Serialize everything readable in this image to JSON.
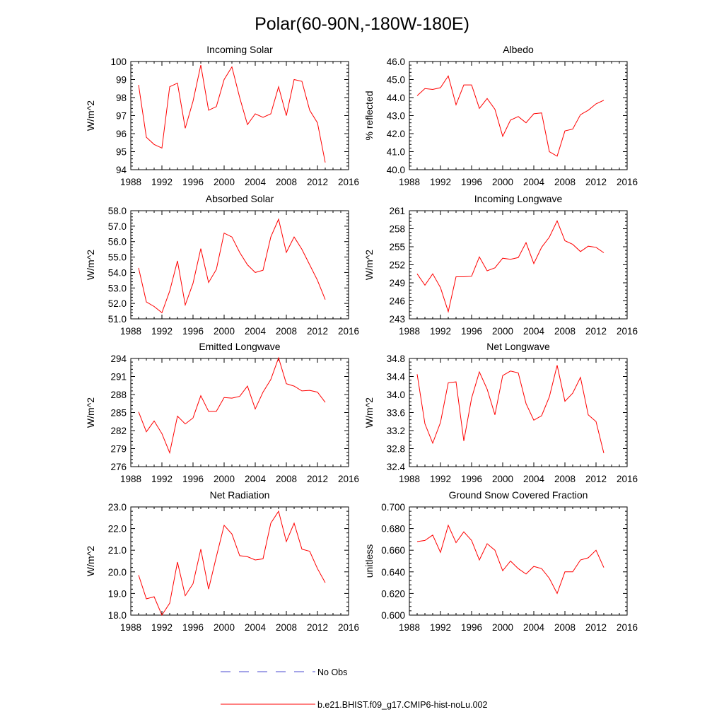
{
  "title": "Polar(60-90N,-180W-180E)",
  "colors": {
    "model": "#ff0000",
    "obs": "#4a4ad0",
    "axis": "#000000"
  },
  "legend": {
    "entries": [
      {
        "label": "No Obs",
        "style": "dashed",
        "color": "#4a4ad0"
      },
      {
        "label": "b.e21.BHIST.f09_g17.CMIP6-hist-noLu.002",
        "style": "solid",
        "color": "#ff0000"
      }
    ]
  },
  "chart_data": [
    {
      "type": "line",
      "title": "Incoming Solar",
      "ylabel": "W/m^2",
      "xlim": [
        1988,
        2016
      ],
      "ylim": [
        94,
        100
      ],
      "xticks": [
        "1988",
        "1992",
        "1996",
        "2000",
        "2004",
        "2008",
        "2012",
        "2016"
      ],
      "yticks": [
        "94",
        "95",
        "96",
        "97",
        "98",
        "99",
        "100"
      ],
      "grid": false,
      "series": [
        {
          "name": "b.e21.BHIST.f09_g17.CMIP6-hist-noLu.002",
          "x": [
            1989,
            1990,
            1991,
            1992,
            1993,
            1994,
            1995,
            1996,
            1997,
            1998,
            1999,
            2000,
            2001,
            2002,
            2003,
            2004,
            2005,
            2006,
            2007,
            2008,
            2009,
            2010,
            2011,
            2012,
            2013
          ],
          "values": [
            98.7,
            95.8,
            95.4,
            95.2,
            98.6,
            98.8,
            96.3,
            97.8,
            99.8,
            97.3,
            97.5,
            99.0,
            99.7,
            98.0,
            96.5,
            97.1,
            96.9,
            97.1,
            98.6,
            97.0,
            99.0,
            98.9,
            97.3,
            96.6,
            94.4
          ]
        }
      ]
    },
    {
      "type": "line",
      "title": "Albedo",
      "ylabel": "% reflected",
      "xlim": [
        1988,
        2016
      ],
      "ylim": [
        40,
        46
      ],
      "xticks": [
        "1988",
        "1992",
        "1996",
        "2000",
        "2004",
        "2008",
        "2012",
        "2016"
      ],
      "yticks": [
        "40.0",
        "41.0",
        "42.0",
        "43.0",
        "44.0",
        "45.0",
        "46.0"
      ],
      "grid": false,
      "series": [
        {
          "name": "b.e21.BHIST.f09_g17.CMIP6-hist-noLu.002",
          "x": [
            1989,
            1990,
            1991,
            1992,
            1993,
            1994,
            1995,
            1996,
            1997,
            1998,
            1999,
            2000,
            2001,
            2002,
            2003,
            2004,
            2005,
            2006,
            2007,
            2008,
            2009,
            2010,
            2011,
            2012,
            2013
          ],
          "values": [
            44.1,
            44.5,
            44.45,
            44.55,
            45.2,
            43.6,
            44.7,
            44.7,
            43.4,
            43.95,
            43.35,
            41.85,
            42.75,
            42.95,
            42.6,
            43.1,
            43.15,
            41.0,
            40.75,
            42.15,
            42.25,
            43.05,
            43.3,
            43.65,
            43.85
          ]
        }
      ]
    },
    {
      "type": "line",
      "title": "Absorbed Solar",
      "ylabel": "W/m^2",
      "xlim": [
        1988,
        2016
      ],
      "ylim": [
        51,
        58
      ],
      "xticks": [
        "1988",
        "1992",
        "1996",
        "2000",
        "2004",
        "2008",
        "2012",
        "2016"
      ],
      "yticks": [
        "51.0",
        "52.0",
        "53.0",
        "54.0",
        "55.0",
        "56.0",
        "57.0",
        "58.0"
      ],
      "grid": false,
      "series": [
        {
          "name": "b.e21.BHIST.f09_g17.CMIP6-hist-noLu.002",
          "x": [
            1989,
            1990,
            1991,
            1992,
            1993,
            1994,
            1995,
            1996,
            1997,
            1998,
            1999,
            2000,
            2001,
            2002,
            2003,
            2004,
            2005,
            2006,
            2007,
            2008,
            2009,
            2010,
            2011,
            2012,
            2013
          ],
          "values": [
            54.3,
            52.1,
            51.8,
            51.4,
            52.8,
            54.75,
            51.9,
            53.3,
            55.55,
            53.35,
            54.2,
            56.55,
            56.3,
            55.3,
            54.5,
            54.0,
            54.15,
            56.3,
            57.45,
            55.3,
            56.3,
            55.5,
            54.5,
            53.5,
            52.25
          ]
        }
      ]
    },
    {
      "type": "line",
      "title": "Incoming Longwave",
      "ylabel": "W/m^2",
      "xlim": [
        1988,
        2016
      ],
      "ylim": [
        243,
        261
      ],
      "xticks": [
        "1988",
        "1992",
        "1996",
        "2000",
        "2004",
        "2008",
        "2012",
        "2016"
      ],
      "yticks": [
        "243",
        "246",
        "249",
        "252",
        "255",
        "258",
        "261"
      ],
      "grid": false,
      "series": [
        {
          "name": "b.e21.BHIST.f09_g17.CMIP6-hist-noLu.002",
          "x": [
            1989,
            1990,
            1991,
            1992,
            1993,
            1994,
            1995,
            1996,
            1997,
            1998,
            1999,
            2000,
            2001,
            2002,
            2003,
            2004,
            2005,
            2006,
            2007,
            2008,
            2009,
            2010,
            2011,
            2012,
            2013
          ],
          "values": [
            250.5,
            248.6,
            250.5,
            248.2,
            244.2,
            250.0,
            250.0,
            250.1,
            253.3,
            251.0,
            251.5,
            253.1,
            252.9,
            253.2,
            255.7,
            252.2,
            254.9,
            256.6,
            259.3,
            256.0,
            255.4,
            254.2,
            255.1,
            254.9,
            254.0
          ]
        }
      ]
    },
    {
      "type": "line",
      "title": "Emitted Longwave",
      "ylabel": "W/m^2",
      "xlim": [
        1988,
        2016
      ],
      "ylim": [
        276,
        294
      ],
      "xticks": [
        "1988",
        "1992",
        "1996",
        "2000",
        "2004",
        "2008",
        "2012",
        "2016"
      ],
      "yticks": [
        "276",
        "279",
        "282",
        "285",
        "288",
        "291",
        "294"
      ],
      "grid": false,
      "series": [
        {
          "name": "b.e21.BHIST.f09_g17.CMIP6-hist-noLu.002",
          "x": [
            1989,
            1990,
            1991,
            1992,
            1993,
            1994,
            1995,
            1996,
            1997,
            1998,
            1999,
            2000,
            2001,
            2002,
            2003,
            2004,
            2005,
            2006,
            2007,
            2008,
            2009,
            2010,
            2011,
            2012,
            2013
          ],
          "values": [
            285.1,
            281.8,
            283.6,
            281.5,
            278.3,
            284.4,
            283.1,
            284.1,
            287.8,
            285.2,
            285.2,
            287.5,
            287.4,
            287.7,
            289.4,
            285.6,
            288.4,
            290.5,
            294.1,
            289.8,
            289.4,
            288.6,
            288.7,
            288.4,
            286.7
          ]
        }
      ]
    },
    {
      "type": "line",
      "title": "Net Longwave",
      "ylabel": "W/m^2",
      "xlim": [
        1988,
        2016
      ],
      "ylim": [
        32.4,
        34.8
      ],
      "xticks": [
        "1988",
        "1992",
        "1996",
        "2000",
        "2004",
        "2008",
        "2012",
        "2016"
      ],
      "yticks": [
        "32.4",
        "32.8",
        "33.2",
        "33.6",
        "34.0",
        "34.4",
        "34.8"
      ],
      "grid": false,
      "series": [
        {
          "name": "b.e21.BHIST.f09_g17.CMIP6-hist-noLu.002",
          "x": [
            1989,
            1990,
            1991,
            1992,
            1993,
            1994,
            1995,
            1996,
            1997,
            1998,
            1999,
            2000,
            2001,
            2002,
            2003,
            2004,
            2005,
            2006,
            2007,
            2008,
            2009,
            2010,
            2011,
            2012,
            2013
          ],
          "values": [
            34.45,
            33.35,
            32.92,
            33.38,
            34.26,
            34.28,
            32.97,
            33.92,
            34.5,
            34.12,
            33.55,
            34.42,
            34.52,
            34.48,
            33.8,
            33.43,
            33.53,
            33.95,
            34.65,
            33.85,
            34.03,
            34.38,
            33.55,
            33.4,
            32.7
          ]
        }
      ]
    },
    {
      "type": "line",
      "title": "Net Radiation",
      "ylabel": "W/m^2",
      "xlim": [
        1988,
        2016
      ],
      "ylim": [
        18,
        23
      ],
      "xticks": [
        "1988",
        "1992",
        "1996",
        "2000",
        "2004",
        "2008",
        "2012",
        "2016"
      ],
      "yticks": [
        "18.0",
        "19.0",
        "20.0",
        "21.0",
        "22.0",
        "23.0"
      ],
      "grid": false,
      "series": [
        {
          "name": "b.e21.BHIST.f09_g17.CMIP6-hist-noLu.002",
          "x": [
            1989,
            1990,
            1991,
            1992,
            1993,
            1994,
            1995,
            1996,
            1997,
            1998,
            1999,
            2000,
            2001,
            2002,
            2003,
            2004,
            2005,
            2006,
            2007,
            2008,
            2009,
            2010,
            2011,
            2012,
            2013
          ],
          "values": [
            19.85,
            18.75,
            18.85,
            18.0,
            18.55,
            20.45,
            18.9,
            19.45,
            21.05,
            19.2,
            20.7,
            22.15,
            21.75,
            20.75,
            20.7,
            20.55,
            20.6,
            22.25,
            22.8,
            21.4,
            22.25,
            21.05,
            20.95,
            20.15,
            19.5
          ]
        }
      ]
    },
    {
      "type": "line",
      "title": "Ground Snow Covered Fraction",
      "ylabel": "unitless",
      "xlim": [
        1988,
        2016
      ],
      "ylim": [
        0.6,
        0.7
      ],
      "xticks": [
        "1988",
        "1992",
        "1996",
        "2000",
        "2004",
        "2008",
        "2012",
        "2016"
      ],
      "yticks": [
        "0.600",
        "0.620",
        "0.640",
        "0.660",
        "0.680",
        "0.700"
      ],
      "grid": false,
      "series": [
        {
          "name": "b.e21.BHIST.f09_g17.CMIP6-hist-noLu.002",
          "x": [
            1989,
            1990,
            1991,
            1992,
            1993,
            1994,
            1995,
            1996,
            1997,
            1998,
            1999,
            2000,
            2001,
            2002,
            2003,
            2004,
            2005,
            2006,
            2007,
            2008,
            2009,
            2010,
            2011,
            2012,
            2013
          ],
          "values": [
            0.668,
            0.669,
            0.674,
            0.658,
            0.683,
            0.667,
            0.677,
            0.669,
            0.651,
            0.666,
            0.66,
            0.641,
            0.65,
            0.643,
            0.638,
            0.645,
            0.643,
            0.634,
            0.62,
            0.64,
            0.64,
            0.651,
            0.653,
            0.66,
            0.644
          ]
        }
      ]
    }
  ]
}
